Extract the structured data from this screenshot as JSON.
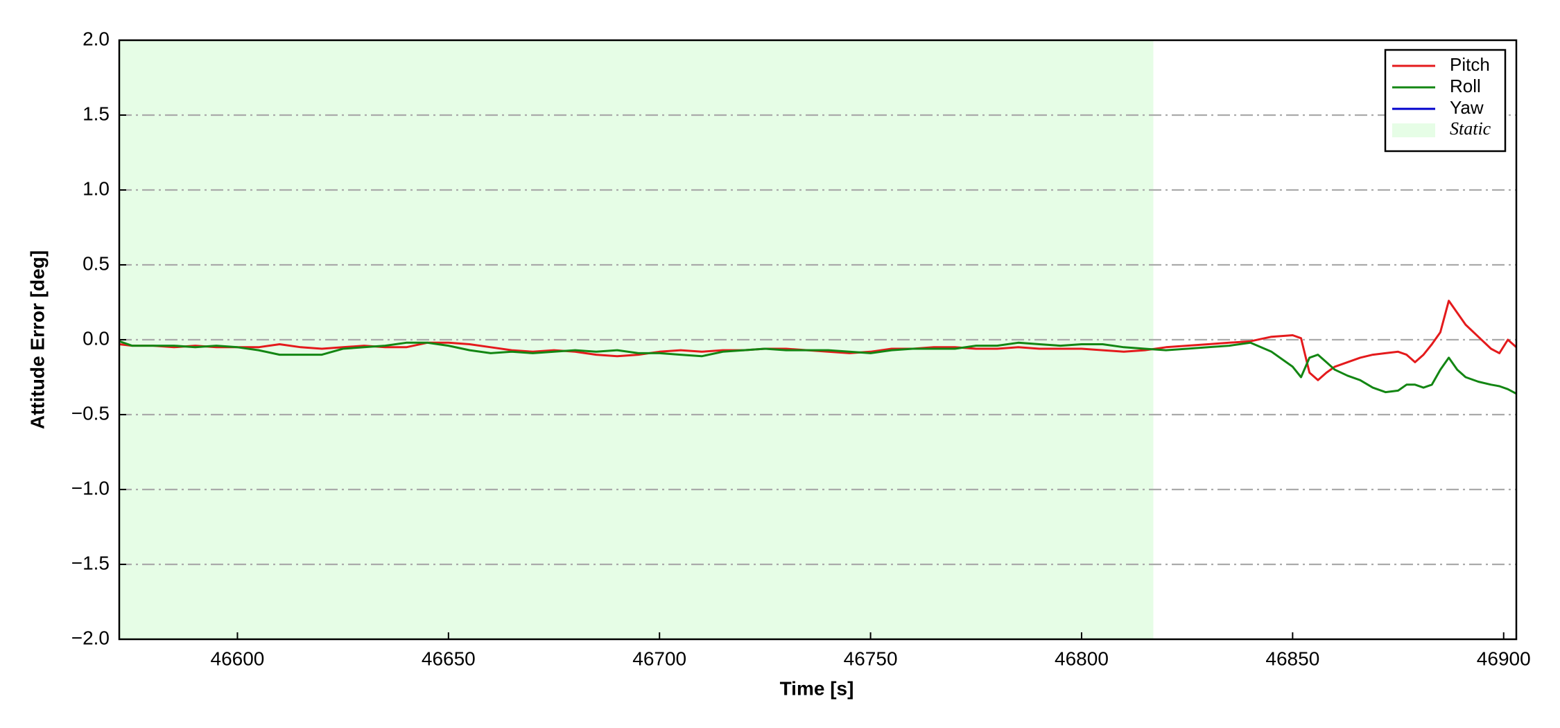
{
  "chart_data": {
    "type": "line",
    "xlabel": "Time [s]",
    "ylabel": "Attitude Error [deg]",
    "x": [
      46572,
      46575,
      46580,
      46585,
      46590,
      46595,
      46600,
      46605,
      46610,
      46615,
      46620,
      46625,
      46630,
      46635,
      46640,
      46645,
      46650,
      46655,
      46660,
      46665,
      46670,
      46675,
      46680,
      46685,
      46690,
      46695,
      46700,
      46705,
      46710,
      46715,
      46720,
      46725,
      46730,
      46735,
      46740,
      46745,
      46750,
      46755,
      46760,
      46765,
      46770,
      46775,
      46780,
      46785,
      46790,
      46795,
      46800,
      46805,
      46810,
      46815,
      46820,
      46825,
      46830,
      46835,
      46840,
      46845,
      46850,
      46852,
      46854,
      46856,
      46858,
      46860,
      46863,
      46866,
      46869,
      46872,
      46875,
      46877,
      46879,
      46881,
      46883,
      46885,
      46887,
      46889,
      46891,
      46894,
      46897,
      46899,
      46901,
      46903
    ],
    "series": [
      {
        "name": "Pitch",
        "color": "#e41a1c",
        "values": [
          -0.03,
          -0.04,
          -0.04,
          -0.05,
          -0.04,
          -0.05,
          -0.05,
          -0.05,
          -0.03,
          -0.05,
          -0.06,
          -0.05,
          -0.04,
          -0.05,
          -0.05,
          -0.02,
          -0.02,
          -0.03,
          -0.05,
          -0.07,
          -0.08,
          -0.07,
          -0.08,
          -0.1,
          -0.11,
          -0.1,
          -0.08,
          -0.07,
          -0.08,
          -0.07,
          -0.07,
          -0.06,
          -0.06,
          -0.07,
          -0.08,
          -0.09,
          -0.08,
          -0.06,
          -0.06,
          -0.05,
          -0.05,
          -0.06,
          -0.06,
          -0.05,
          -0.06,
          -0.06,
          -0.06,
          -0.07,
          -0.08,
          -0.07,
          -0.05,
          -0.04,
          -0.03,
          -0.02,
          -0.01,
          0.02,
          0.03,
          0.01,
          -0.22,
          -0.27,
          -0.22,
          -0.18,
          -0.15,
          -0.12,
          -0.1,
          -0.09,
          -0.08,
          -0.1,
          -0.15,
          -0.1,
          -0.03,
          0.05,
          0.26,
          0.18,
          0.1,
          0.02,
          -0.06,
          -0.09,
          0.0,
          -0.05
        ]
      },
      {
        "name": "Roll",
        "color": "#138613",
        "values": [
          -0.01,
          -0.04,
          -0.04,
          -0.04,
          -0.05,
          -0.04,
          -0.05,
          -0.07,
          -0.1,
          -0.1,
          -0.1,
          -0.06,
          -0.05,
          -0.04,
          -0.02,
          -0.02,
          -0.04,
          -0.07,
          -0.09,
          -0.08,
          -0.09,
          -0.08,
          -0.07,
          -0.08,
          -0.07,
          -0.09,
          -0.09,
          -0.1,
          -0.11,
          -0.08,
          -0.07,
          -0.06,
          -0.07,
          -0.07,
          -0.07,
          -0.08,
          -0.09,
          -0.07,
          -0.06,
          -0.06,
          -0.06,
          -0.04,
          -0.04,
          -0.02,
          -0.03,
          -0.04,
          -0.03,
          -0.03,
          -0.05,
          -0.06,
          -0.07,
          -0.06,
          -0.05,
          -0.04,
          -0.02,
          -0.08,
          -0.18,
          -0.25,
          -0.12,
          -0.1,
          -0.15,
          -0.2,
          -0.24,
          -0.27,
          -0.32,
          -0.35,
          -0.34,
          -0.3,
          -0.3,
          -0.32,
          -0.3,
          -0.2,
          -0.12,
          -0.2,
          -0.25,
          -0.28,
          -0.3,
          -0.31,
          -0.33,
          -0.36
        ]
      },
      {
        "name": "Yaw",
        "color": "#0000cc",
        "values": [
          null,
          null,
          null,
          null,
          null,
          null,
          null,
          null,
          null,
          null,
          null,
          null,
          null,
          null,
          null,
          null,
          null,
          null,
          null,
          null,
          null,
          null,
          null,
          null,
          null,
          null,
          null,
          null,
          null,
          null,
          null,
          null,
          null,
          null,
          null,
          null,
          null,
          null,
          null,
          null,
          null,
          null,
          null,
          null,
          null,
          null,
          null,
          null,
          null,
          null,
          null,
          null,
          null,
          null,
          null,
          null,
          null,
          null,
          null,
          null,
          null,
          null,
          null,
          null,
          null,
          null,
          null,
          null,
          null,
          null,
          null,
          null,
          null,
          null,
          null,
          null,
          null,
          null,
          null,
          null
        ]
      }
    ],
    "span": {
      "name": "Static",
      "color": "#e6fde6",
      "x": [
        46572,
        46817
      ]
    },
    "xlim": [
      46572,
      46903
    ],
    "ylim": [
      -2.0,
      2.0
    ],
    "xticks": [
      46600,
      46650,
      46700,
      46750,
      46800,
      46850,
      46900
    ],
    "yticks": [
      {
        "value": 2.0,
        "label": "2.0"
      },
      {
        "value": 1.5,
        "label": "1.5"
      },
      {
        "value": 1.0,
        "label": "1.0"
      },
      {
        "value": 0.5,
        "label": "0.5"
      },
      {
        "value": 0.0,
        "label": "0.0"
      },
      {
        "value": -0.5,
        "label": "−0.5"
      },
      {
        "value": -1.0,
        "label": "−1.0"
      },
      {
        "value": -1.5,
        "label": "−1.5"
      },
      {
        "value": -2.0,
        "label": "−2.0"
      }
    ],
    "grid": true,
    "legend": "upper right"
  }
}
